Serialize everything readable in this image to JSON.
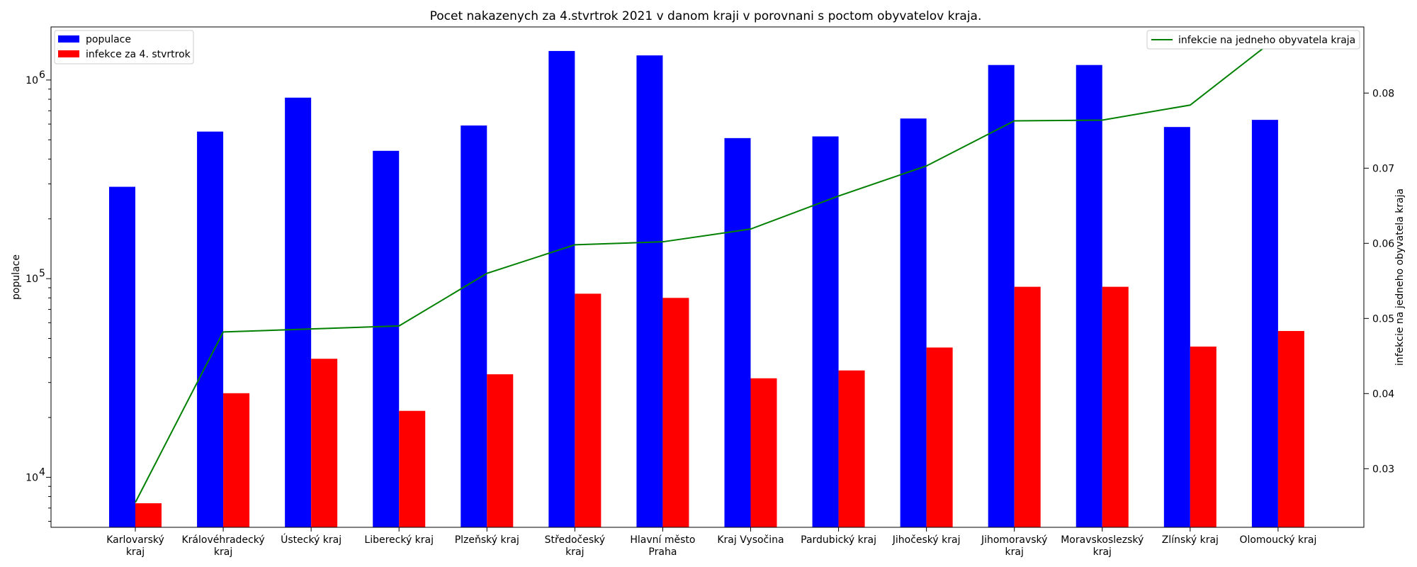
{
  "chart_data": {
    "type": "bar",
    "title": "Pocet nakazenych za 4.stvrtrok 2021 v danom kraji v porovnani s poctom obyvatelov kraja.",
    "xlabel": "",
    "ylabel": "populace",
    "y2label": "infekcie na jedneho obyvatela kraja",
    "yscale": "log",
    "ylim": [
      5600,
      1850000
    ],
    "y2lim": [
      0.0222,
      0.0888
    ],
    "y_ticks": [
      {
        "label": "10",
        "exp": "4",
        "value": 10000
      },
      {
        "label": "10",
        "exp": "5",
        "value": 100000
      },
      {
        "label": "10",
        "exp": "6",
        "value": 1000000
      }
    ],
    "y2_ticks": [
      "0.03",
      "0.04",
      "0.05",
      "0.06",
      "0.07",
      "0.08"
    ],
    "categories": [
      [
        "Karlovarský",
        "kraj"
      ],
      [
        "Královéhradecký",
        "kraj"
      ],
      [
        "Ústecký kraj"
      ],
      [
        "Liberecký kraj"
      ],
      [
        "Plzeňský kraj"
      ],
      [
        "Středočeský",
        "kraj"
      ],
      [
        "Hlavní město",
        "Praha"
      ],
      [
        "Kraj Vysočina"
      ],
      [
        "Pardubický kraj"
      ],
      [
        "Jihočeský kraj"
      ],
      [
        "Jihomoravský",
        "kraj"
      ],
      [
        "Moravskoslezský",
        "kraj"
      ],
      [
        "Zlínský kraj"
      ],
      [
        "Olomoucký kraj"
      ]
    ],
    "series": [
      {
        "name": "populace",
        "kind": "bar",
        "axis": "left",
        "color": "#0000ff",
        "values": [
          290000,
          550000,
          815000,
          440000,
          590000,
          1400000,
          1330000,
          510000,
          520000,
          640000,
          1190000,
          1190000,
          580000,
          630000
        ]
      },
      {
        "name": "infekce za 4. stvrtrok",
        "kind": "bar",
        "axis": "left",
        "color": "#ff0000",
        "values": [
          7400,
          26500,
          39500,
          21600,
          33000,
          84000,
          80000,
          31500,
          34500,
          45000,
          91000,
          91000,
          45500,
          54500
        ]
      },
      {
        "name": "infekcie na jedneho obyvatela kraja",
        "kind": "line",
        "axis": "right",
        "color": "#008000",
        "values": [
          0.0255,
          0.0482,
          0.0486,
          0.049,
          0.056,
          0.0598,
          0.0602,
          0.0619,
          0.0663,
          0.0703,
          0.0763,
          0.0764,
          0.0784,
          0.0875
        ]
      }
    ],
    "legend_left": "upper-left",
    "legend_right": "upper-right",
    "grid": false
  }
}
